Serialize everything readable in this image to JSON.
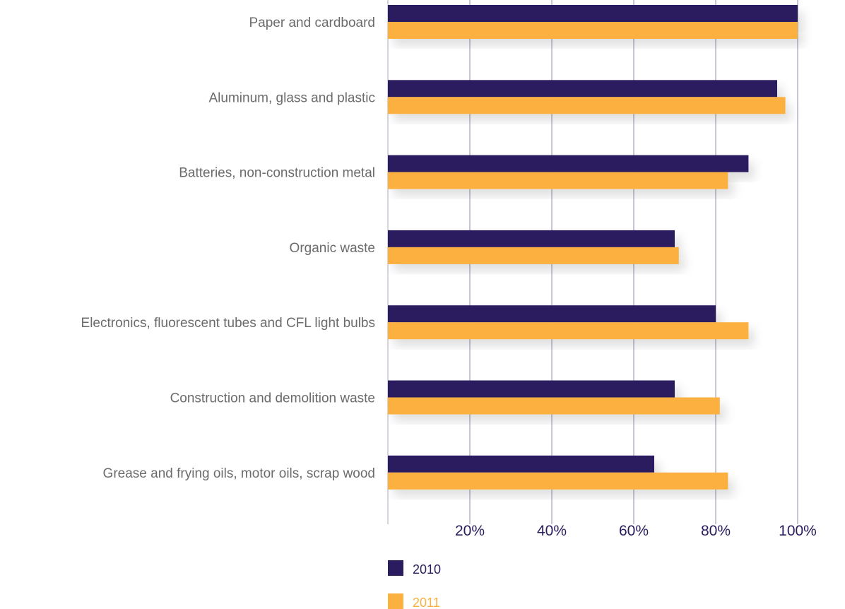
{
  "chart_data": {
    "type": "bar",
    "orientation": "horizontal",
    "title": "",
    "xlabel": "",
    "ylabel": "",
    "xlim": [
      0,
      100
    ],
    "x_ticks": [
      {
        "value": 20,
        "label": "20%"
      },
      {
        "value": 40,
        "label": "40%"
      },
      {
        "value": 60,
        "label": "60%"
      },
      {
        "value": 80,
        "label": "80%"
      },
      {
        "value": 100,
        "label": "100%"
      }
    ],
    "grid": "vertical",
    "legend_position": "bottom-left",
    "categories": [
      "Paper and cardboard",
      "Aluminum, glass and plastic",
      "Batteries, non-construction metal",
      "Organic waste",
      "Electronics, fluorescent tubes and CFL light bulbs",
      "Construction and demolition waste",
      "Grease and frying oils, motor oils, scrap wood"
    ],
    "series": [
      {
        "name": "2010",
        "color": "#2a1c5f",
        "values": [
          100,
          95,
          88,
          70,
          80,
          70,
          65
        ]
      },
      {
        "name": "2011",
        "color": "#fbb040",
        "values": [
          100,
          97,
          83,
          71,
          88,
          81,
          83
        ]
      }
    ]
  }
}
